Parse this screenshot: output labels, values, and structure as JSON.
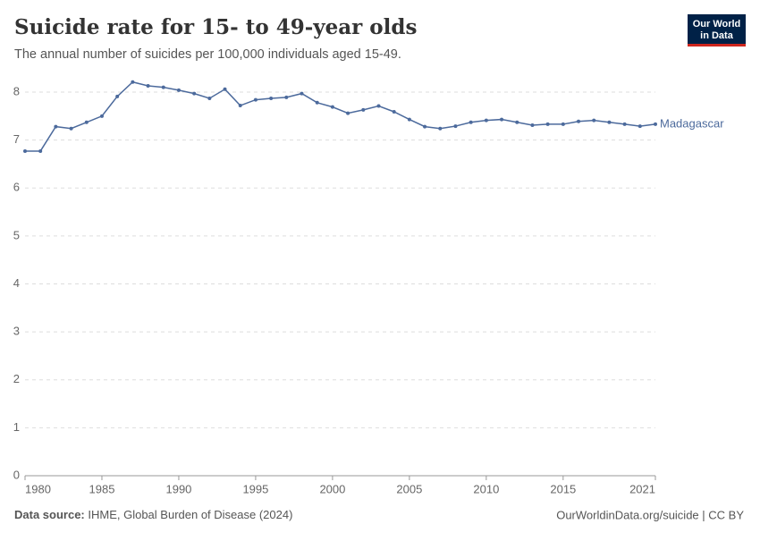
{
  "chart_data": {
    "type": "line",
    "title": "Suicide rate for 15- to 49-year olds",
    "subtitle": "The annual number of suicides per 100,000 individuals aged 15-49.",
    "logo": [
      "Our World",
      "in Data"
    ],
    "source_label": "Data source:",
    "source": "IHME, Global Burden of Disease (2024)",
    "credit": "OurWorldinData.org/suicide | CC BY",
    "x": [
      1980,
      1981,
      1982,
      1983,
      1984,
      1985,
      1986,
      1987,
      1988,
      1989,
      1990,
      1991,
      1992,
      1993,
      1994,
      1995,
      1996,
      1997,
      1998,
      1999,
      2000,
      2001,
      2002,
      2003,
      2004,
      2005,
      2006,
      2007,
      2008,
      2009,
      2010,
      2011,
      2012,
      2013,
      2014,
      2015,
      2016,
      2017,
      2018,
      2019,
      2020,
      2021
    ],
    "series": [
      {
        "name": "Madagascar",
        "color": "#4c6a9c",
        "values": [
          6.77,
          6.77,
          7.28,
          7.24,
          7.37,
          7.5,
          7.91,
          8.21,
          8.13,
          8.1,
          8.04,
          7.97,
          7.87,
          8.06,
          7.72,
          7.84,
          7.87,
          7.89,
          7.97,
          7.78,
          7.69,
          7.56,
          7.63,
          7.71,
          7.59,
          7.43,
          7.28,
          7.24,
          7.29,
          7.37,
          7.41,
          7.43,
          7.37,
          7.31,
          7.33,
          7.33,
          7.39,
          7.41,
          7.37,
          7.33,
          7.29,
          7.33
        ]
      }
    ],
    "xlim": [
      1980,
      2021
    ],
    "xticks": [
      1980,
      1985,
      1990,
      1995,
      2000,
      2005,
      2010,
      2015,
      2021
    ],
    "ylim": [
      0,
      8
    ],
    "yticks": [
      0,
      1,
      2,
      3,
      4,
      5,
      6,
      7,
      8
    ],
    "grid": true
  }
}
